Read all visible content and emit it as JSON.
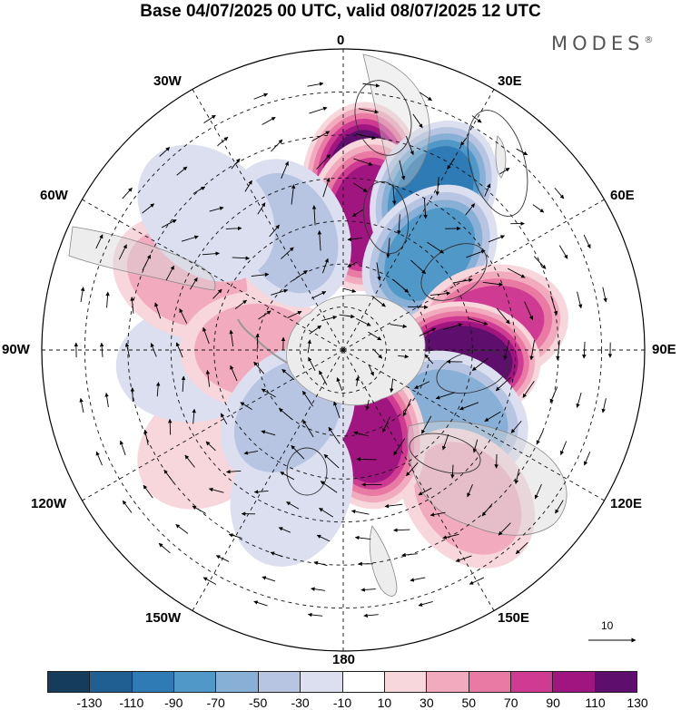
{
  "title": "Base 04/07/2025 00 UTC, valid 08/07/2025 12 UTC",
  "brand": "MODES",
  "brand_mark": "®",
  "longitude_labels": {
    "lon_0": "0",
    "lon_30e": "30E",
    "lon_60e": "60E",
    "lon_90e": "90E",
    "lon_120e": "120E",
    "lon_150e": "150E",
    "lon_180": "180",
    "lon_150w": "150W",
    "lon_120w": "120W",
    "lon_90w": "90W",
    "lon_60w": "60W",
    "lon_30w": "30W"
  },
  "reference_vector": "10",
  "colorbar": {
    "colors": [
      "#163c5c",
      "#1f5f91",
      "#2e7bb6",
      "#4f98c8",
      "#88afd6",
      "#b7c5e2",
      "#dcdff0",
      "#ffffff",
      "#f7d6dc",
      "#f2aabe",
      "#e97aa4",
      "#cf3a92",
      "#a0157f",
      "#5e0f6e"
    ],
    "ticks": [
      "-130",
      "-110",
      "-90",
      "-70",
      "-50",
      "-30",
      "-10",
      "10",
      "30",
      "50",
      "70",
      "90",
      "110",
      "130"
    ]
  },
  "anomalies": [
    {
      "lat": -50,
      "lon": 6,
      "value": 120
    },
    {
      "lat": -58,
      "lon": 10,
      "value": 100
    },
    {
      "lat": -48,
      "lon": 30,
      "value": -115
    },
    {
      "lat": -60,
      "lon": 42,
      "value": -95
    },
    {
      "lat": -55,
      "lon": 80,
      "value": 80
    },
    {
      "lat": -62,
      "lon": 95,
      "value": 120
    },
    {
      "lat": -60,
      "lon": 120,
      "value": -60
    },
    {
      "lat": -45,
      "lon": 140,
      "value": 45
    },
    {
      "lat": -70,
      "lon": 165,
      "value": 105
    },
    {
      "lat": -52,
      "lon": -125,
      "value": 35
    },
    {
      "lat": -55,
      "lon": -95,
      "value": -30
    },
    {
      "lat": -50,
      "lon": -65,
      "value": 55
    },
    {
      "lat": -70,
      "lon": -90,
      "value": 45
    },
    {
      "lat": -60,
      "lon": -25,
      "value": -55
    },
    {
      "lat": -45,
      "lon": -45,
      "value": -25
    },
    {
      "lat": -55,
      "lon": -160,
      "value": -35
    },
    {
      "lat": -70,
      "lon": -140,
      "value": -40
    }
  ]
}
